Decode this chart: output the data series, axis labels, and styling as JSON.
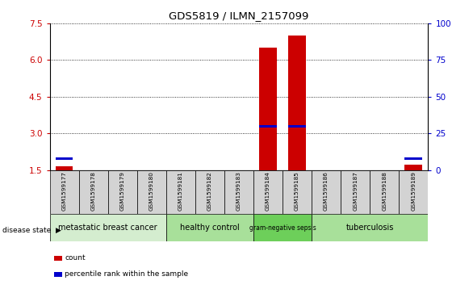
{
  "title": "GDS5819 / ILMN_2157099",
  "samples": [
    "GSM1599177",
    "GSM1599178",
    "GSM1599179",
    "GSM1599180",
    "GSM1599181",
    "GSM1599182",
    "GSM1599183",
    "GSM1599184",
    "GSM1599185",
    "GSM1599186",
    "GSM1599187",
    "GSM1599188",
    "GSM1599189"
  ],
  "count_values": [
    1.65,
    1.5,
    1.5,
    1.5,
    1.5,
    1.5,
    1.5,
    6.5,
    7.0,
    1.5,
    1.5,
    1.5,
    1.72
  ],
  "percentile_left_axis": [
    1.95,
    null,
    null,
    null,
    null,
    null,
    null,
    3.3,
    3.3,
    null,
    null,
    null,
    1.95
  ],
  "ylim_left": [
    1.5,
    7.5
  ],
  "ylim_right": [
    0,
    100
  ],
  "yticks_left": [
    1.5,
    3.0,
    4.5,
    6.0,
    7.5
  ],
  "yticks_right": [
    0,
    25,
    50,
    75,
    100
  ],
  "disease_groups": [
    {
      "label": "metastatic breast cancer",
      "start": 0,
      "end": 4,
      "color": "#d4edcf"
    },
    {
      "label": "healthy control",
      "start": 4,
      "end": 7,
      "color": "#a8e09a"
    },
    {
      "label": "gram-negative sepsis",
      "start": 7,
      "end": 9,
      "color": "#6dcf5a"
    },
    {
      "label": "tuberculosis",
      "start": 9,
      "end": 13,
      "color": "#a8e09a"
    }
  ],
  "bar_color": "#cc0000",
  "percentile_color": "#0000cc",
  "tick_color_left": "#cc0000",
  "tick_color_right": "#0000cc",
  "sample_area_bg": "#d3d3d3",
  "legend_count_label": "count",
  "legend_percentile_label": "percentile rank within the sample",
  "disease_state_label": "disease state"
}
